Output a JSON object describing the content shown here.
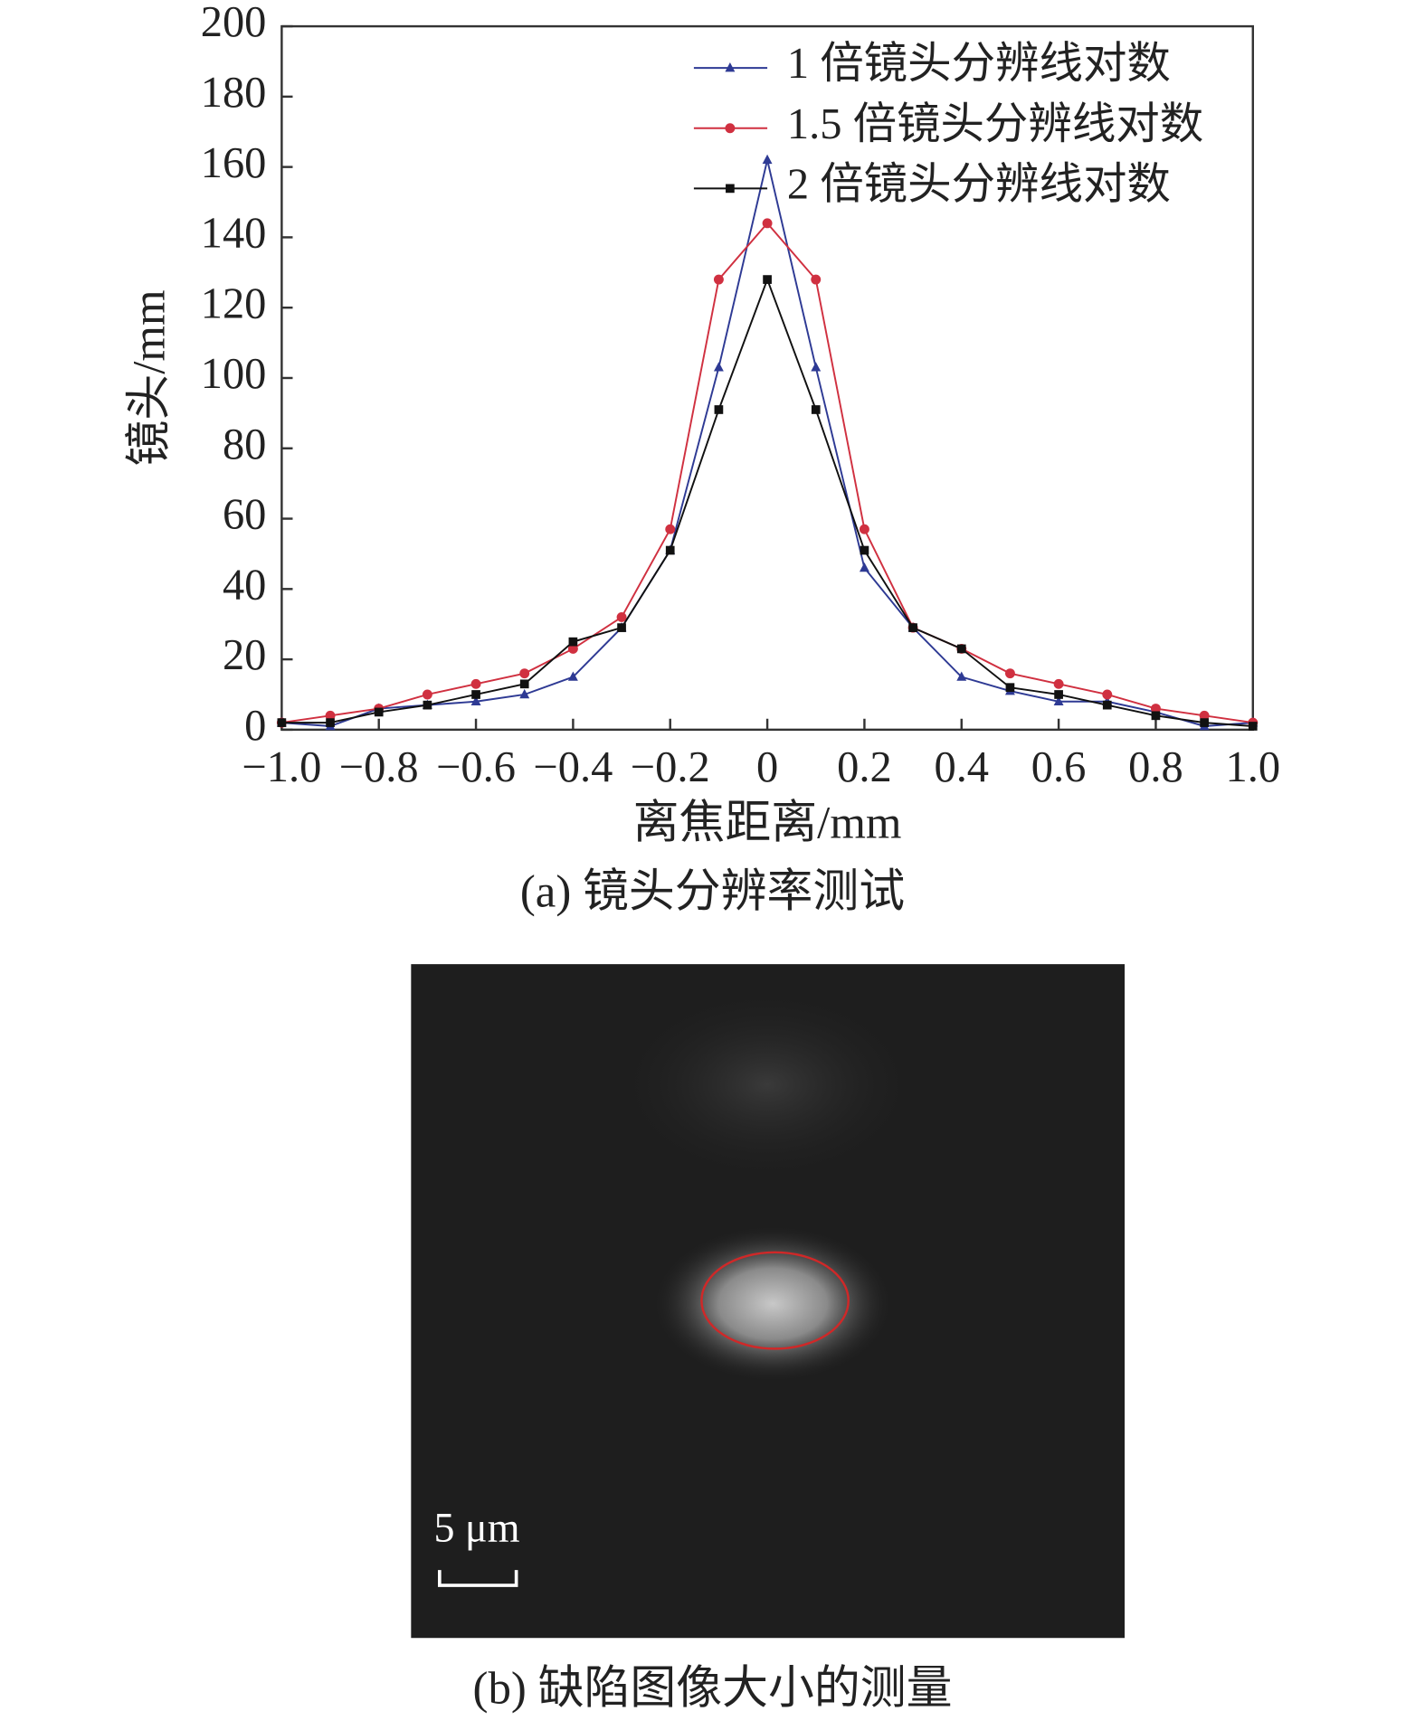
{
  "chart_data": {
    "type": "line",
    "x": [
      -1.0,
      -0.9,
      -0.8,
      -0.7,
      -0.6,
      -0.5,
      -0.4,
      -0.3,
      -0.2,
      -0.1,
      0,
      0.1,
      0.2,
      0.3,
      0.4,
      0.5,
      0.6,
      0.7,
      0.8,
      0.9,
      1.0
    ],
    "series": [
      {
        "name": "1 倍镜头分辨线对数",
        "color": "#2e3a94",
        "marker": "triangle",
        "values": [
          2,
          1,
          6,
          7,
          8,
          10,
          15,
          29,
          51,
          103,
          162,
          103,
          46,
          29,
          15,
          11,
          8,
          8,
          5,
          1,
          2
        ]
      },
      {
        "name": "1.5 倍镜头分辨线对数",
        "color": "#d03040",
        "marker": "circle",
        "values": [
          2,
          4,
          6,
          10,
          13,
          16,
          23,
          32,
          57,
          128,
          144,
          128,
          57,
          29,
          23,
          16,
          13,
          10,
          6,
          4,
          2
        ]
      },
      {
        "name": "2 倍镜头分辨线对数",
        "color": "#111111",
        "marker": "square",
        "values": [
          2,
          2,
          5,
          7,
          10,
          13,
          25,
          29,
          51,
          91,
          128,
          91,
          51,
          29,
          23,
          12,
          10,
          7,
          4,
          2,
          1
        ]
      }
    ],
    "x_label": "离焦距离/mm",
    "y_label": "镜头/mm",
    "xlim": [
      -1.0,
      1.0
    ],
    "ylim": [
      0,
      200
    ],
    "xticks": [
      {
        "value": -1.0,
        "label": "−1.0"
      },
      {
        "value": -0.8,
        "label": "−0.8"
      },
      {
        "value": -0.6,
        "label": "−0.6"
      },
      {
        "value": -0.4,
        "label": "−0.4"
      },
      {
        "value": -0.2,
        "label": "−0.2"
      },
      0,
      0.2,
      0.4,
      0.6,
      0.8,
      {
        "value": 1.0,
        "label": "1.0"
      }
    ],
    "yticks": [
      0,
      20,
      40,
      60,
      80,
      100,
      120,
      140,
      160,
      180,
      200
    ],
    "legend": "top-right",
    "grid": false,
    "caption": "(a) 镜头分辨率测试"
  },
  "image_panel": {
    "scale_label": "5 μm",
    "caption": "(b) 缺陷图像大小的测量"
  }
}
